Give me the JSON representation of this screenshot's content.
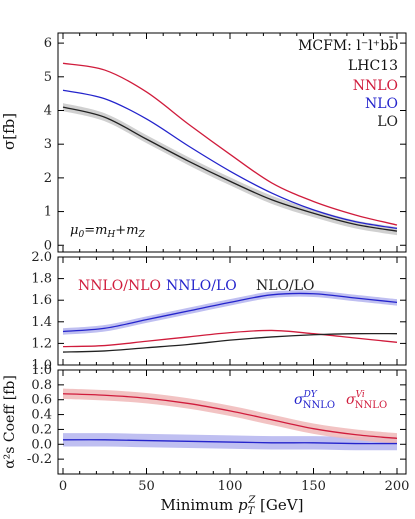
{
  "colors": {
    "nnlo": "#d01c3c",
    "nlo": "#2424cc",
    "lo": "#222222",
    "band_lo": "#c8c8c8",
    "band_nlo": "#b4b4ee",
    "band_red": "#f0b8b8"
  },
  "chart_data": [
    {
      "type": "line",
      "panel": "top",
      "x": [
        0,
        25,
        50,
        75,
        100,
        125,
        150,
        175,
        200
      ],
      "ylabel": "σ[fb]",
      "ylim": [
        -0.2,
        6.3
      ],
      "yticks": [
        "0",
        "1",
        "2",
        "3",
        "4",
        "5",
        "6"
      ],
      "annotations": [
        "MCFM: l⁻l⁺bb̄",
        "LHC13"
      ],
      "scale_label": {
        "mu": "μ",
        "sub0": "0",
        "eq": "=",
        "mH": "m",
        "subH": "H",
        "plus": "+",
        "mZ": "m",
        "subZ": "Z"
      },
      "series": [
        {
          "name": "NNLO",
          "values": [
            5.4,
            5.2,
            4.55,
            3.6,
            2.7,
            1.85,
            1.3,
            0.9,
            0.6
          ]
        },
        {
          "name": "NLO",
          "values": [
            4.6,
            4.35,
            3.75,
            2.95,
            2.2,
            1.55,
            1.05,
            0.7,
            0.5
          ]
        },
        {
          "name": "LO",
          "values": [
            4.1,
            3.8,
            3.15,
            2.5,
            1.9,
            1.35,
            0.95,
            0.62,
            0.42
          ],
          "band": 0.12
        }
      ]
    },
    {
      "type": "line",
      "panel": "ratio",
      "x": [
        0,
        25,
        50,
        75,
        100,
        125,
        150,
        175,
        200
      ],
      "ylim": [
        1.0,
        2.0
      ],
      "yticks": [
        "1.0",
        "1.2",
        "1.4",
        "1.6",
        "1.8",
        "2.0"
      ],
      "series": [
        {
          "name": "NNLO/NLO",
          "values": [
            1.17,
            1.18,
            1.22,
            1.26,
            1.3,
            1.32,
            1.29,
            1.25,
            1.21
          ]
        },
        {
          "name": "NNLO/LO",
          "values": [
            1.31,
            1.34,
            1.42,
            1.5,
            1.58,
            1.65,
            1.66,
            1.62,
            1.58
          ],
          "band": 0.03
        },
        {
          "name": "NLO/LO",
          "values": [
            1.12,
            1.13,
            1.16,
            1.19,
            1.23,
            1.26,
            1.28,
            1.29,
            1.29
          ]
        }
      ]
    },
    {
      "type": "line",
      "panel": "coeff",
      "x": [
        0,
        25,
        50,
        75,
        100,
        125,
        150,
        175,
        200
      ],
      "ylabel": "α²s Coeff [fb]",
      "ylim": [
        -0.4,
        1.0
      ],
      "yticks": [
        "-0.2",
        "0.0",
        "0.2",
        "0.4",
        "0.6",
        "0.8",
        "1.0"
      ],
      "xlabel": "Minimum p_T^Z [GeV]",
      "xticks": [
        "0",
        "50",
        "100",
        "150",
        "200"
      ],
      "legend": {
        "sigma": "σ",
        "nnlo": "NNLO",
        "dy": "DY",
        "vi": "Vi"
      },
      "series": [
        {
          "name": "σ DY NNLO",
          "values": [
            0.06,
            0.06,
            0.05,
            0.04,
            0.03,
            0.02,
            0.02,
            0.01,
            0.01
          ],
          "band": 0.09
        },
        {
          "name": "σ Vi NNLO",
          "values": [
            0.68,
            0.66,
            0.62,
            0.55,
            0.45,
            0.33,
            0.21,
            0.13,
            0.08
          ],
          "band": 0.07
        }
      ]
    }
  ]
}
